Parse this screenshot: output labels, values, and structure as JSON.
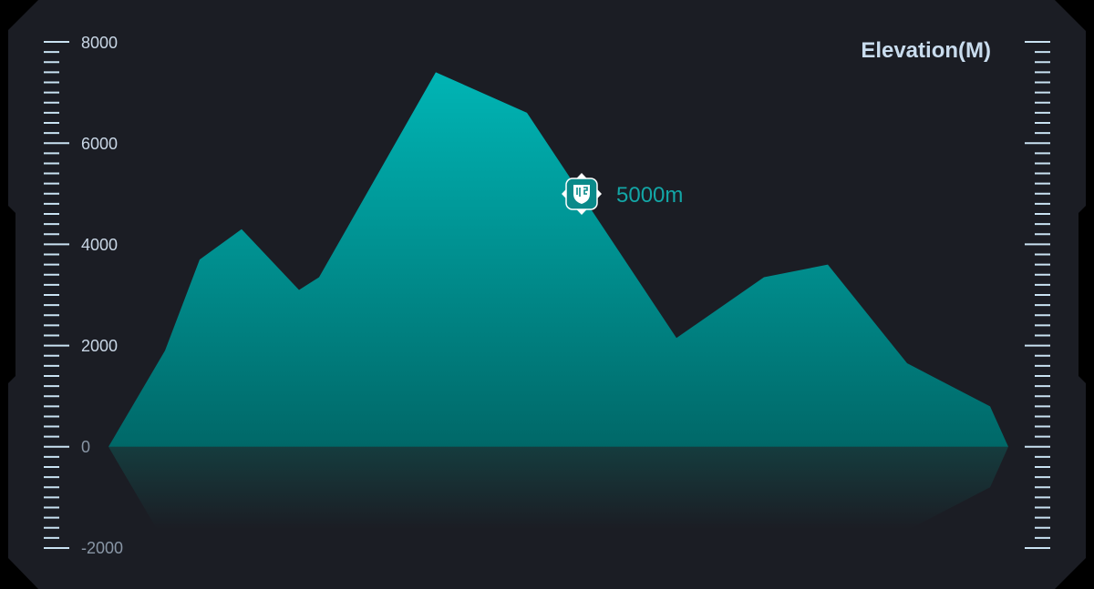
{
  "chart_data": {
    "type": "area",
    "title": "Elevation(M)",
    "xlabel": "",
    "ylabel": "",
    "ylim": [
      -2000,
      8000
    ],
    "y_ticks": [
      "8000",
      "6000",
      "4000",
      "2000",
      "0",
      "-2000"
    ],
    "grid": false,
    "legend": "none",
    "series": [
      {
        "values": [
          0,
          1900,
          3700,
          4300,
          3100,
          3350,
          7400,
          6600,
          2150,
          3350,
          3600,
          1650,
          800,
          0
        ]
      }
    ],
    "reflection": true,
    "marker": {
      "value": 5000,
      "label": "5000m",
      "icon": "shield-badge-icon"
    },
    "colors": {
      "area_top": "#00b3b3",
      "area_bottom": "#006b6b",
      "axis_ticks": "#c9e2f2",
      "background": "#1b1d24",
      "marker_text": "#13a6a6"
    }
  }
}
